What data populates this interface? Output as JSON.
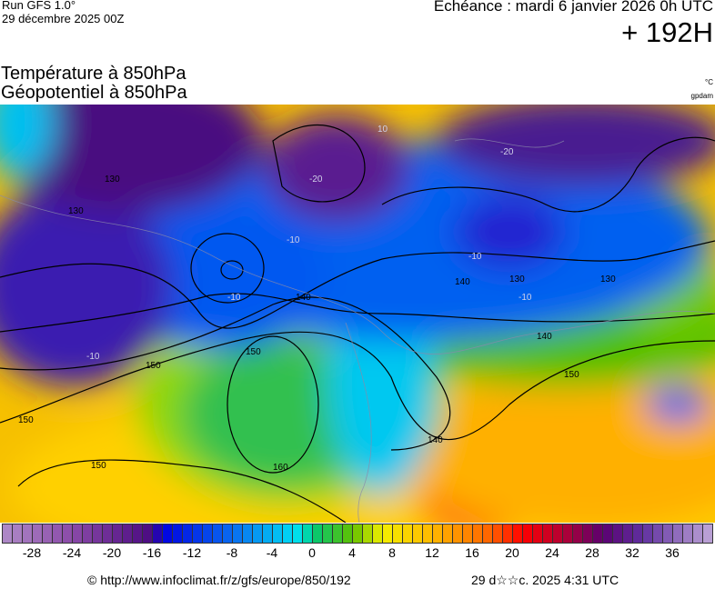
{
  "header": {
    "run": "Run GFS 1.0°",
    "run_date": "29 décembre 2025 00Z",
    "valid": "Echéance : mardi 6 janvier 2026 0h UTC",
    "lead": "+ 192H",
    "var1": "Température à 850hPa",
    "var2": "Géopotentiel à 850hPa",
    "unit1": "°C",
    "unit2": "gpdam"
  },
  "map": {
    "contour_labels": [
      "130",
      "130",
      "130",
      "130",
      "140",
      "140",
      "140",
      "140",
      "150",
      "150",
      "150",
      "150",
      "160",
      "150",
      "-10",
      "-10",
      "-10",
      "-10",
      "-20",
      "-20",
      "10",
      "-10"
    ]
  },
  "colorbar": {
    "min": -31,
    "max": 40,
    "ticks": [
      "-28",
      "-24",
      "-20",
      "-16",
      "-12",
      "-8",
      "-4",
      "0",
      "4",
      "8",
      "12",
      "16",
      "20",
      "24",
      "28",
      "32",
      "36"
    ],
    "anchors": [
      [
        -31,
        "#b08cc8"
      ],
      [
        -24,
        "#8a4aa8"
      ],
      [
        -16,
        "#4a0a80"
      ],
      [
        -15,
        "#0000e0"
      ],
      [
        -8,
        "#0a6cf0"
      ],
      [
        -2,
        "#00d8f4"
      ],
      [
        -1,
        "#00e4e0"
      ],
      [
        0,
        "#00c878"
      ],
      [
        4,
        "#60c000"
      ],
      [
        7,
        "#f4f000"
      ],
      [
        12,
        "#ffb800"
      ],
      [
        18,
        "#ff6000"
      ],
      [
        21,
        "#ff0000"
      ],
      [
        26,
        "#a00040"
      ],
      [
        29,
        "#5a0070"
      ],
      [
        33,
        "#6030a0"
      ],
      [
        40,
        "#c0a8d8"
      ]
    ]
  },
  "footer": {
    "credit": "© http://www.infoclimat.fr/z/gfs/europe/850/192",
    "generated": "29 d☆☆c. 2025  4:31 UTC"
  }
}
